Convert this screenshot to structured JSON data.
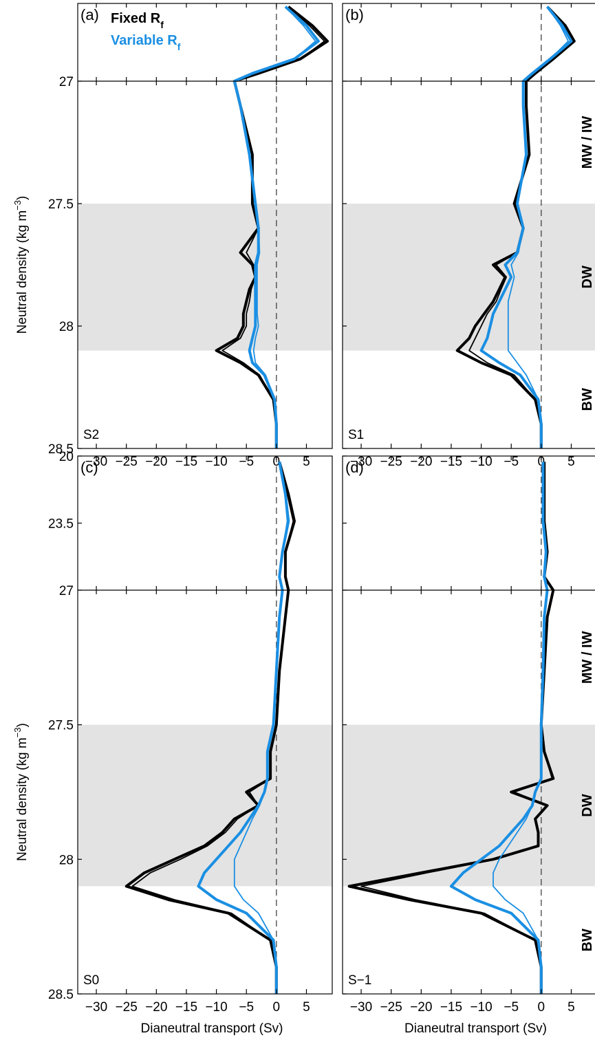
{
  "chart_data": [
    {
      "type": "line",
      "panel": "(a)",
      "case": "S2",
      "legend": [
        {
          "text": "Fixed R",
          "sub": "f",
          "color": "#000000"
        },
        {
          "text": "Variable R",
          "sub": "f",
          "color": "#1a8fe3"
        }
      ],
      "ylabel": {
        "text": "Neutral density (kg m",
        "sup": "−3",
        "end": ")"
      },
      "xlim": [
        -33.1,
        9.3
      ],
      "xticks": [
        {
          "value": -30,
          "label": "−30"
        },
        {
          "value": -25,
          "label": "−25"
        },
        {
          "value": -20,
          "label": "−20"
        },
        {
          "value": -15,
          "label": "−15"
        },
        {
          "value": -10,
          "label": "−10"
        },
        {
          "value": -5,
          "label": "−5"
        },
        0,
        5
      ],
      "ylim_upper": [
        20,
        27
      ],
      "yticks_upper": [],
      "ylim": [
        27,
        28.5
      ],
      "yticks": [
        27,
        27.5,
        28,
        28.5
      ],
      "show_ytick_labels": true,
      "shade": [
        27.5,
        28.1
      ],
      "density": [
        20.3,
        22,
        23.4,
        25,
        26.3,
        27,
        27.1,
        27.3,
        27.5,
        27.6,
        27.7,
        27.75,
        27.8,
        27.85,
        27.9,
        27.95,
        28,
        28.05,
        28.1,
        28.15,
        28.2,
        28.3,
        28.4,
        28.5
      ],
      "series": [
        {
          "color": "#000000",
          "width": 4,
          "values": [
            2,
            6,
            8.5,
            4,
            -3,
            -7,
            -6,
            -4,
            -4,
            -3,
            -6,
            -4,
            -3.5,
            -4.5,
            -5,
            -5.5,
            -5.5,
            -6.5,
            -10,
            -6,
            -3,
            -0.5,
            0,
            0
          ]
        },
        {
          "color": "#000000",
          "width": 1.8,
          "values": [
            2,
            5.5,
            8,
            4,
            -3,
            -7,
            -6,
            -4,
            -4,
            -3,
            -5,
            -3.8,
            -3.5,
            -4.2,
            -4.5,
            -5,
            -5,
            -6,
            -9,
            -5.5,
            -2.8,
            -0.5,
            0,
            0
          ]
        },
        {
          "color": "#1a8fe3",
          "width": 4,
          "values": [
            1.5,
            5,
            7,
            3,
            -4,
            -7,
            -6,
            -4.5,
            -3.5,
            -3,
            -3,
            -3.5,
            -3.5,
            -3.5,
            -3.5,
            -3.5,
            -3.5,
            -4,
            -4.5,
            -4,
            -2,
            -0.3,
            0,
            0
          ]
        },
        {
          "color": "#1a8fe3",
          "width": 1.8,
          "values": [
            1.5,
            4.5,
            6.5,
            3,
            -4,
            -7,
            -6,
            -4.5,
            -3.5,
            -3,
            -2.8,
            -3.2,
            -3.2,
            -3.2,
            -3.2,
            -3.2,
            -3,
            -3.5,
            -3.8,
            -3.5,
            -1.8,
            -0.3,
            0,
            0
          ]
        }
      ]
    },
    {
      "type": "line",
      "panel": "(b)",
      "case": "S1",
      "water_masses": [
        "MW / IW",
        "DW",
        "BW"
      ],
      "xlim": [
        -33.1,
        9.3
      ],
      "xticks": [
        {
          "value": -30,
          "label": "−30"
        },
        {
          "value": -25,
          "label": "−25"
        },
        {
          "value": -20,
          "label": "−20"
        },
        {
          "value": -15,
          "label": "−15"
        },
        {
          "value": -10,
          "label": "−10"
        },
        {
          "value": -5,
          "label": "−5"
        },
        0,
        5
      ],
      "ylim_upper": [
        20,
        27
      ],
      "yticks_upper": [],
      "ylim": [
        27,
        28.5
      ],
      "yticks": [
        27,
        27.5,
        28,
        28.5
      ],
      "show_ytick_labels": false,
      "shade": [
        27.5,
        28.1
      ],
      "density": [
        20.3,
        22,
        23.4,
        25,
        26.3,
        27,
        27.1,
        27.3,
        27.5,
        27.6,
        27.7,
        27.75,
        27.8,
        27.85,
        27.9,
        27.95,
        28,
        28.05,
        28.1,
        28.15,
        28.2,
        28.3,
        28.4,
        28.5
      ],
      "series": [
        {
          "color": "#000000",
          "width": 4,
          "values": [
            1,
            4,
            5.5,
            2,
            -1,
            -2.5,
            -2.5,
            -2,
            -4.5,
            -3,
            -4,
            -8,
            -6,
            -7,
            -8,
            -9.5,
            -11,
            -12,
            -14,
            -10,
            -5,
            -1,
            0,
            0
          ]
        },
        {
          "color": "#000000",
          "width": 1.8,
          "values": [
            1,
            3.8,
            5.2,
            2,
            -1,
            -2.5,
            -2.5,
            -2,
            -4.3,
            -3,
            -4,
            -7.5,
            -5.8,
            -6.7,
            -7.5,
            -9,
            -10,
            -11,
            -12,
            -9,
            -4.5,
            -1,
            0,
            0
          ]
        },
        {
          "color": "#1a8fe3",
          "width": 4,
          "values": [
            1,
            3.5,
            5,
            1.5,
            -1.5,
            -3,
            -3,
            -2.5,
            -4,
            -3,
            -4,
            -6,
            -5,
            -6,
            -7,
            -8,
            -8.5,
            -9,
            -10,
            -7,
            -3.5,
            -0.5,
            0,
            0
          ]
        },
        {
          "color": "#1a8fe3",
          "width": 1.8,
          "values": [
            1,
            3.2,
            4.5,
            1.5,
            -1.5,
            -3,
            -3,
            -2.5,
            -4,
            -3,
            -3.8,
            -5,
            -4.5,
            -5,
            -5.5,
            -5.5,
            -5.5,
            -5.5,
            -5.5,
            -4,
            -2.5,
            -0.5,
            0,
            0
          ]
        }
      ]
    },
    {
      "type": "line",
      "panel": "(c)",
      "case": "S0",
      "ylabel": {
        "text": "Neutral density (kg m",
        "sup": "−3",
        "end": ")"
      },
      "xlabel": "Dianeutral transport (Sv)",
      "xlim": [
        -33.1,
        9.3
      ],
      "xticks": [
        {
          "value": -30,
          "label": "−30"
        },
        {
          "value": -25,
          "label": "−25"
        },
        {
          "value": -20,
          "label": "−20"
        },
        {
          "value": -15,
          "label": "−15"
        },
        {
          "value": -10,
          "label": "−10"
        },
        {
          "value": -5,
          "label": "−5"
        },
        0,
        5
      ],
      "ylim_upper": [
        20,
        27
      ],
      "yticks_upper": [
        20,
        23.5
      ],
      "ylim": [
        27,
        28.5
      ],
      "yticks": [
        27,
        27.5,
        28,
        28.5
      ],
      "show_ytick_labels": true,
      "shade": [
        27.5,
        28.1
      ],
      "density": [
        20.3,
        22,
        23.4,
        25,
        26.3,
        27,
        27.1,
        27.3,
        27.5,
        27.6,
        27.7,
        27.75,
        27.8,
        27.85,
        27.9,
        27.95,
        28,
        28.05,
        28.1,
        28.15,
        28.2,
        28.3,
        28.4,
        28.5
      ],
      "series": [
        {
          "color": "#000000",
          "width": 4,
          "values": [
            0.5,
            2,
            3,
            1.5,
            1.5,
            2,
            1.5,
            0.5,
            0,
            -1,
            -1,
            -5,
            -3,
            -7,
            -9,
            -12,
            -17,
            -22,
            -25,
            -18,
            -8,
            -1,
            0,
            0
          ]
        },
        {
          "color": "#000000",
          "width": 1.8,
          "values": [
            0.5,
            1.8,
            2.8,
            1.5,
            1.5,
            2,
            1.5,
            0.5,
            0,
            -1,
            -1,
            -4.5,
            -3,
            -6.5,
            -8.5,
            -11.5,
            -16,
            -21,
            -24,
            -17,
            -7.5,
            -1,
            0,
            0
          ]
        },
        {
          "color": "#1a8fe3",
          "width": 4,
          "values": [
            0.5,
            1.5,
            2,
            1,
            0.5,
            1,
            0.5,
            0,
            -0.5,
            -1.5,
            -1.5,
            -2,
            -3,
            -4.5,
            -6,
            -8,
            -10,
            -12,
            -13,
            -10,
            -5,
            -0.5,
            0,
            0
          ]
        },
        {
          "color": "#1a8fe3",
          "width": 1.8,
          "values": [
            0.5,
            1.4,
            1.8,
            1,
            0.5,
            1,
            0.5,
            0,
            -0.5,
            -1.5,
            -1.5,
            -2,
            -2.8,
            -4,
            -5,
            -6,
            -7,
            -7,
            -7,
            -5.5,
            -3,
            -0.5,
            0,
            0
          ]
        }
      ]
    },
    {
      "type": "line",
      "panel": "(d)",
      "case": "S−1",
      "water_masses": [
        "MW / IW",
        "DW",
        "BW"
      ],
      "xlabel": "Dianeutral transport (Sv)",
      "xlim": [
        -33.1,
        9.3
      ],
      "xticks": [
        {
          "value": -30,
          "label": "−30"
        },
        {
          "value": -25,
          "label": "−25"
        },
        {
          "value": -20,
          "label": "−20"
        },
        {
          "value": -15,
          "label": "−15"
        },
        {
          "value": -10,
          "label": "−10"
        },
        {
          "value": -5,
          "label": "−5"
        },
        0,
        5
      ],
      "ylim_upper": [
        20,
        27
      ],
      "yticks_upper": [
        20,
        23.5
      ],
      "ylim": [
        27,
        28.5
      ],
      "yticks": [
        27,
        27.5,
        28,
        28.5
      ],
      "show_ytick_labels": false,
      "shade": [
        27.5,
        28.1
      ],
      "density": [
        20.3,
        22,
        23.4,
        25,
        26.3,
        27,
        27.1,
        27.3,
        27.5,
        27.6,
        27.7,
        27.75,
        27.8,
        27.85,
        27.9,
        27.95,
        28,
        28.05,
        28.1,
        28.15,
        28.2,
        28.3,
        28.4,
        28.5
      ],
      "series": [
        {
          "color": "#000000",
          "width": 4,
          "values": [
            0.5,
            0.5,
            0.5,
            1,
            0.5,
            2,
            1,
            0.5,
            0,
            0.5,
            2,
            -5,
            1,
            -1,
            -0.5,
            -0.5,
            -8,
            -20,
            -32,
            -22,
            -10,
            -1,
            0,
            0
          ]
        },
        {
          "color": "#000000",
          "width": 1.8,
          "values": [
            0.5,
            0.5,
            0.5,
            1,
            0.5,
            2,
            1,
            0.5,
            0,
            0.5,
            1.8,
            -4.5,
            1,
            -1,
            -0.5,
            -0.5,
            -7.5,
            -19,
            -30,
            -21,
            -9.5,
            -1,
            0,
            0
          ]
        },
        {
          "color": "#1a8fe3",
          "width": 4,
          "values": [
            0.3,
            0.3,
            0.3,
            0.8,
            0.5,
            1,
            0.5,
            0.3,
            0,
            0,
            0,
            -1,
            -1.5,
            -3,
            -5,
            -7,
            -10,
            -13,
            -15,
            -11,
            -5,
            -0.5,
            0,
            0
          ]
        },
        {
          "color": "#1a8fe3",
          "width": 1.8,
          "values": [
            0.3,
            0.3,
            0.3,
            0.8,
            0.5,
            1,
            0.5,
            0.3,
            0,
            0,
            0,
            -1,
            -1.5,
            -2.5,
            -4,
            -5.5,
            -7,
            -8,
            -8,
            -6,
            -3,
            -0.5,
            0,
            0
          ]
        }
      ]
    }
  ]
}
